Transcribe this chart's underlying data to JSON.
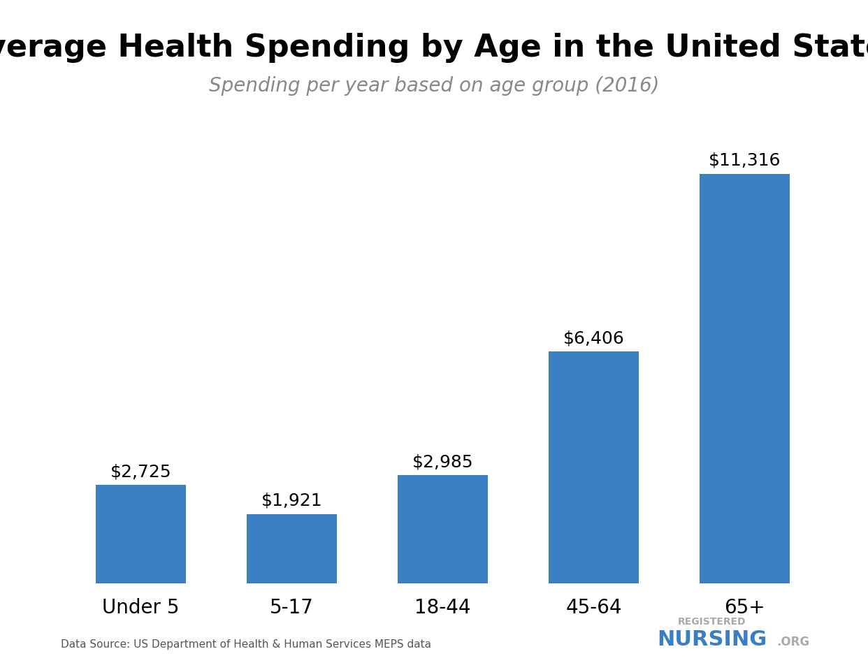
{
  "title": "Average Health Spending by Age in the United States",
  "subtitle": "Spending per year based on age group (2016)",
  "categories": [
    "Under 5",
    "5-17",
    "18-44",
    "45-64",
    "65+"
  ],
  "values": [
    2725,
    1921,
    2985,
    6406,
    11316
  ],
  "labels": [
    "$2,725",
    "$1,921",
    "$2,985",
    "$6,406",
    "$11,316"
  ],
  "bar_color": "#3a7fc1",
  "background_color": "#ffffff",
  "title_fontsize": 32,
  "subtitle_fontsize": 20,
  "label_fontsize": 18,
  "tick_fontsize": 20,
  "data_source": "Data Source: US Department of Health & Human Services MEPS data",
  "ylim": [
    0,
    13000
  ]
}
